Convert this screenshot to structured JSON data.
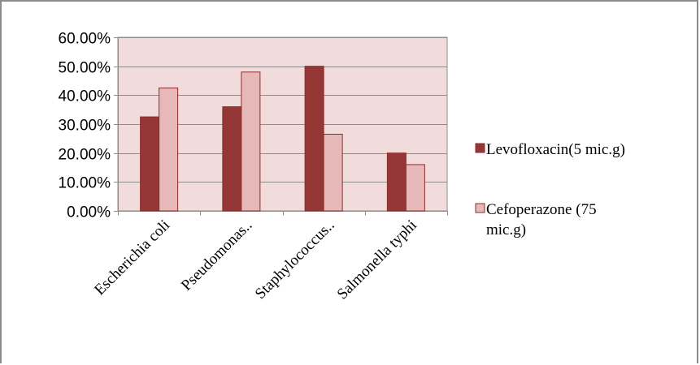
{
  "chart_data": {
    "type": "bar",
    "categories": [
      "Escherichia coli",
      "Pseudomonas..",
      "Staphylococcus..",
      "Salmonella typhi"
    ],
    "series": [
      {
        "name": "Levofloxacin(5 mic.g)",
        "values": [
          0.325,
          0.36,
          0.5,
          0.2
        ],
        "color": "#953735"
      },
      {
        "name": "Cefoperazone (75 mic.g)",
        "legend_lines": [
          "Cefoperazone (75",
          "mic.g)"
        ],
        "values": [
          0.425,
          0.48,
          0.265,
          0.16
        ],
        "color": "#e6b9b8"
      }
    ],
    "ylim": [
      0,
      0.6
    ],
    "yticks": [
      0,
      0.1,
      0.2,
      0.3,
      0.4,
      0.5,
      0.6
    ],
    "ytick_labels": [
      "0.00%",
      "10.00%",
      "20.00%",
      "30.00%",
      "40.00%",
      "50.00%",
      "60.00%"
    ],
    "plot_background": "#f2dcdb",
    "gridlines": true,
    "legend_position": "right"
  }
}
